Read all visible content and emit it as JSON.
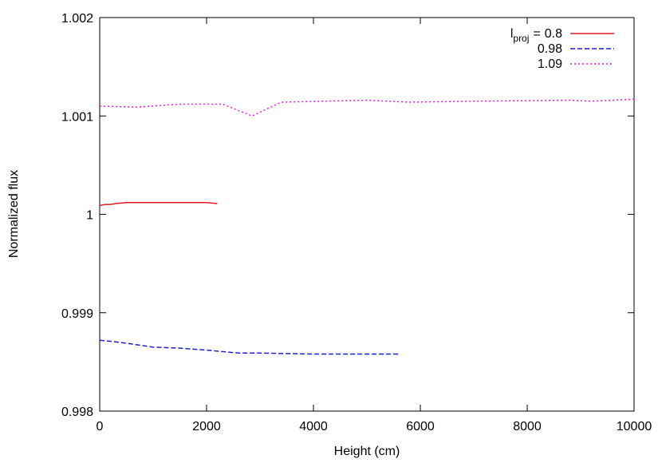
{
  "chart_data": {
    "type": "line",
    "x_label": "Height (cm)",
    "y_label": "Normalized flux",
    "legend_variable": {
      "symbol": "l",
      "subscript": "proj"
    },
    "legend_relation": "=",
    "legend_position": "top-right",
    "xlim": [
      0,
      10000
    ],
    "xticks": [
      0,
      2000,
      4000,
      6000,
      8000,
      10000
    ],
    "ylim": [
      0.998,
      1.002
    ],
    "yticks": [
      0.998,
      0.999,
      1,
      1.001,
      1.002
    ],
    "series": [
      {
        "name": "0.8",
        "color": "#e41a1c",
        "style": "solid",
        "x": [
          0,
          100,
          200,
          300,
          500,
          700,
          1000,
          1500,
          2000,
          2200
        ],
        "values": [
          1.00009,
          1.0001,
          1.0001,
          1.00011,
          1.00012,
          1.00012,
          1.00012,
          1.00012,
          1.00012,
          1.00011
        ]
      },
      {
        "name": "0.98",
        "color": "#1f1fd0",
        "style": "dashed",
        "x": [
          0,
          200,
          500,
          1000,
          1500,
          2000,
          2600,
          3000,
          4000,
          5600
        ],
        "values": [
          0.99872,
          0.99871,
          0.99869,
          0.99865,
          0.99864,
          0.99862,
          0.99859,
          0.99859,
          0.99858,
          0.99858
        ]
      },
      {
        "name": "1.09",
        "color": "#e020e0",
        "style": "dotted",
        "x": [
          0,
          700,
          1500,
          2300,
          2850,
          3400,
          5000,
          5800,
          7000,
          8800,
          9200,
          10000
        ],
        "values": [
          1.0011,
          1.00109,
          1.00112,
          1.00112,
          1.001,
          1.00114,
          1.00116,
          1.00114,
          1.00115,
          1.00116,
          1.00115,
          1.00117
        ]
      }
    ]
  }
}
